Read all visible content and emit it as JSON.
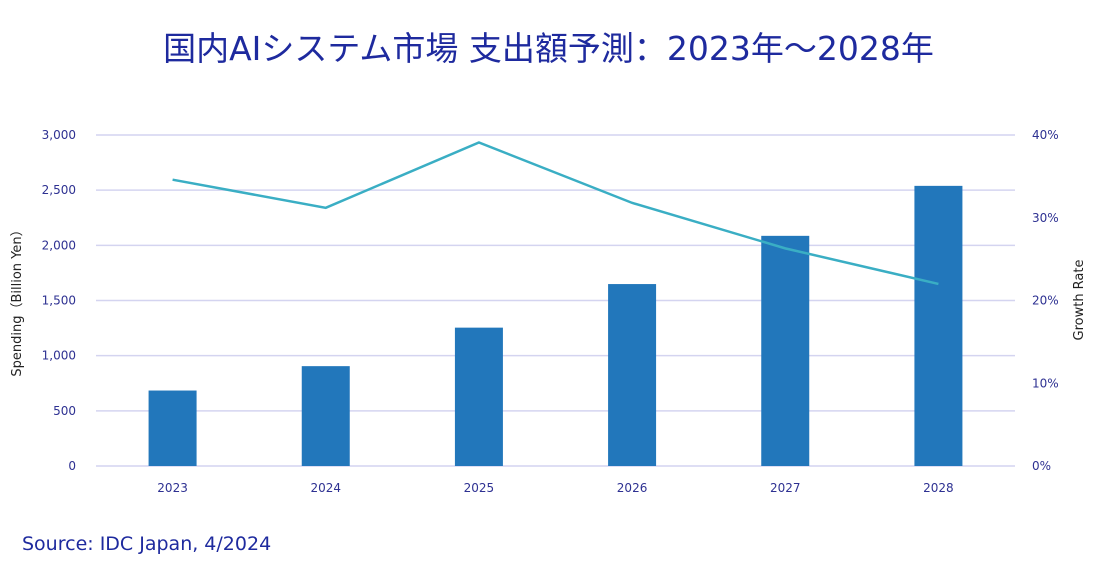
{
  "chart_data": {
    "type": "bar+line",
    "title": "国内AIシステム市場 支出額予測：2023年～2028年",
    "categories": [
      "2023",
      "2024",
      "2025",
      "2026",
      "2027",
      "2028"
    ],
    "series": [
      {
        "type": "bar",
        "axis": "left",
        "values": [
          684,
          905,
          1254,
          1649,
          2086,
          2539
        ],
        "color": "#2277bb"
      },
      {
        "type": "line",
        "axis": "right",
        "values": [
          34.6,
          31.2,
          39.1,
          31.8,
          26.3,
          22.0
        ],
        "color": "#3aaec4"
      }
    ],
    "ylabel": "Spending（Billion Yen）",
    "ylabel_right": "Growth Rate",
    "ylim": [
      0,
      3000
    ],
    "ylim_right": [
      0,
      40
    ],
    "yticks": [
      "0",
      "500",
      "1,000",
      "1,500",
      "2,000",
      "2,500",
      "3,000"
    ],
    "yticks_right": [
      "0%",
      "10%",
      "20%",
      "30%",
      "40%"
    ],
    "grid": true,
    "legend": "none"
  },
  "source": "Source: IDC Japan, 4/2024"
}
